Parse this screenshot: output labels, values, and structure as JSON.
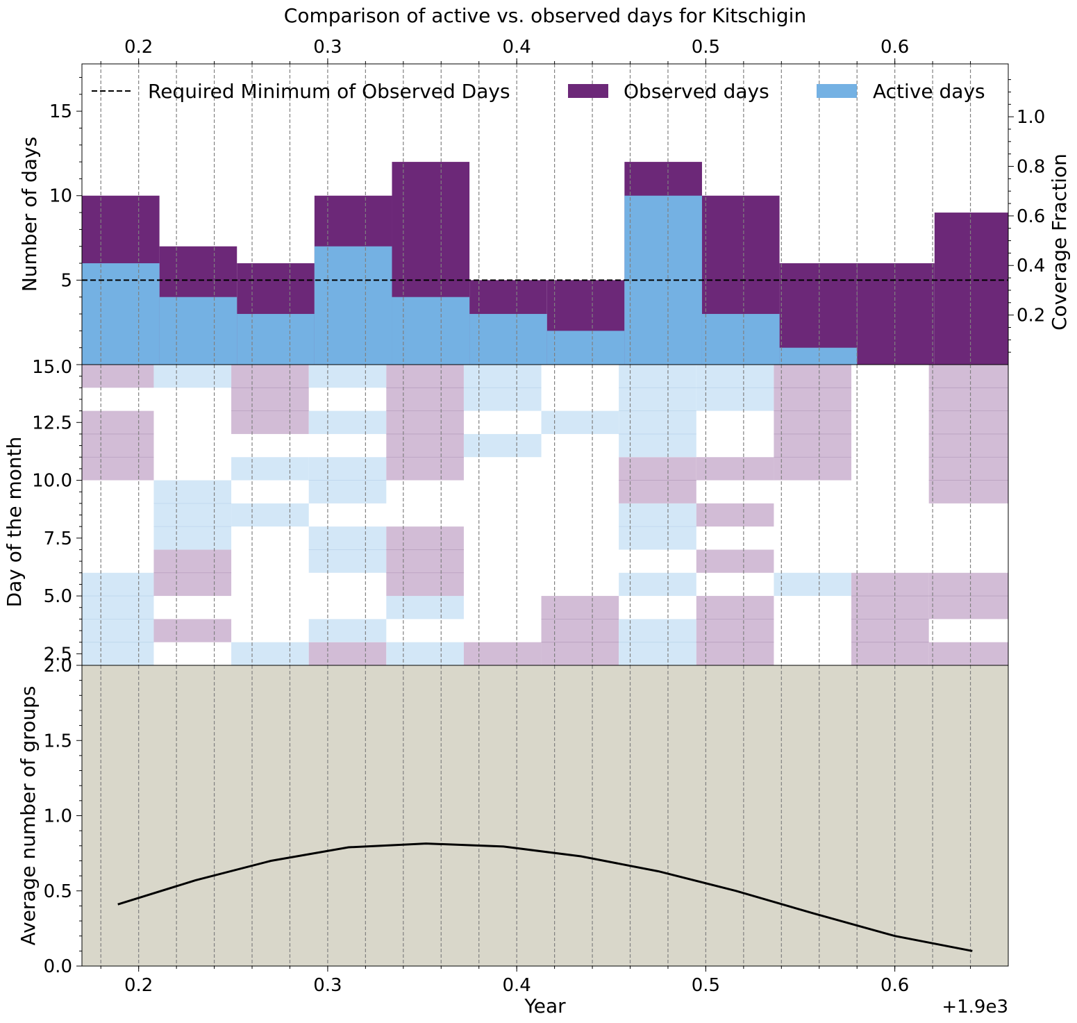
{
  "title": "Comparison of active vs. observed days for Kitschigin",
  "x_offset_label": "+1.9e3",
  "colors": {
    "observed": "#6c2878",
    "active": "#74b1e3",
    "observed_light": "#d2bcd6",
    "active_light": "#d3e7f7",
    "bottom_bg": "#d9d7ca",
    "min_line": "#000000",
    "vline": "#808080"
  },
  "chart_data": [
    {
      "type": "area",
      "panel": "top",
      "ylabel": "Number of days",
      "ylabel_right": "Coverage Fraction",
      "xlim": [
        1900.17,
        1900.66
      ],
      "ylim": [
        0,
        17.8
      ],
      "yticks": [
        5,
        10,
        15
      ],
      "ytick_labels": [
        "5",
        "10",
        "15"
      ],
      "y2lim": [
        0,
        1.2133
      ],
      "y2ticks": [
        0.2,
        0.4,
        0.6,
        0.8,
        1.0
      ],
      "y2tick_labels": [
        "0.2",
        "0.4",
        "0.6",
        "0.8",
        "1.0"
      ],
      "top_xticks": [
        1900.2,
        1900.3,
        1900.4,
        1900.5,
        1900.6
      ],
      "top_xtick_labels": [
        "0.2",
        "0.3",
        "0.4",
        "0.5",
        "0.6"
      ],
      "bin_edges": [
        1900.17,
        1900.211,
        1900.252,
        1900.293,
        1900.334,
        1900.375,
        1900.416,
        1900.457,
        1900.498,
        1900.539,
        1900.58,
        1900.621,
        1900.66
      ],
      "series": [
        {
          "name": "Observed days",
          "values": [
            10,
            7,
            6,
            10,
            12,
            5,
            5,
            12,
            10,
            6,
            6,
            9
          ]
        },
        {
          "name": "Active days",
          "values": [
            6,
            4,
            3,
            7,
            4,
            3,
            2,
            10,
            3,
            1,
            0,
            0
          ]
        }
      ],
      "min_line": {
        "name": "Required Minimum of Observed Days",
        "value": 5
      },
      "legend": {
        "placement": "top",
        "entries": [
          "Required Minimum of Observed Days",
          "Observed days",
          "Active days"
        ]
      }
    },
    {
      "type": "heatmap",
      "panel": "middle",
      "ylabel": "Day of the month",
      "ylim": [
        2.0,
        15.0
      ],
      "yticks": [
        2.0,
        2.5,
        5.0,
        7.5,
        10.0,
        12.5,
        15.0
      ],
      "ytick_labels": [
        "2.0",
        "2.5",
        "5.0",
        "7.5",
        "10.0",
        "12.5",
        "15.0"
      ],
      "columns": [
        {
          "x": [
            1900.17,
            1900.208
          ],
          "cells": [
            {
              "type": "active",
              "from": 2,
              "to": 6
            },
            {
              "type": "observed",
              "from": 10,
              "to": 13
            },
            {
              "type": "observed",
              "from": 14,
              "to": 15
            }
          ]
        },
        {
          "x": [
            1900.208,
            1900.249
          ],
          "cells": [
            {
              "type": "observed",
              "from": 3,
              "to": 4
            },
            {
              "type": "observed",
              "from": 5,
              "to": 7
            },
            {
              "type": "active",
              "from": 7,
              "to": 10
            },
            {
              "type": "active",
              "from": 14,
              "to": 15
            }
          ]
        },
        {
          "x": [
            1900.249,
            1900.29
          ],
          "cells": [
            {
              "type": "active",
              "from": 2,
              "to": 3
            },
            {
              "type": "active",
              "from": 8,
              "to": 9
            },
            {
              "type": "active",
              "from": 10,
              "to": 11
            },
            {
              "type": "observed",
              "from": 12,
              "to": 15
            }
          ]
        },
        {
          "x": [
            1900.29,
            1900.331
          ],
          "cells": [
            {
              "type": "observed",
              "from": 2,
              "to": 3
            },
            {
              "type": "active",
              "from": 3,
              "to": 4
            },
            {
              "type": "active",
              "from": 6,
              "to": 8
            },
            {
              "type": "active",
              "from": 9,
              "to": 11
            },
            {
              "type": "active",
              "from": 12,
              "to": 13
            },
            {
              "type": "active",
              "from": 14,
              "to": 15
            }
          ]
        },
        {
          "x": [
            1900.331,
            1900.372
          ],
          "cells": [
            {
              "type": "active",
              "from": 2,
              "to": 3
            },
            {
              "type": "active",
              "from": 4,
              "to": 5
            },
            {
              "type": "observed",
              "from": 5,
              "to": 8
            },
            {
              "type": "observed",
              "from": 10,
              "to": 15
            }
          ]
        },
        {
          "x": [
            1900.372,
            1900.413
          ],
          "cells": [
            {
              "type": "observed",
              "from": 2,
              "to": 3
            },
            {
              "type": "observed",
              "from": 1,
              "to": 2
            },
            {
              "type": "active",
              "from": 11,
              "to": 12
            },
            {
              "type": "active",
              "from": 13,
              "to": 15
            }
          ]
        },
        {
          "x": [
            1900.413,
            1900.454
          ],
          "cells": [
            {
              "type": "active",
              "from": 1,
              "to": 2
            },
            {
              "type": "observed",
              "from": 2,
              "to": 5
            },
            {
              "type": "active",
              "from": 12,
              "to": 13
            }
          ]
        },
        {
          "x": [
            1900.454,
            1900.495
          ],
          "cells": [
            {
              "type": "active",
              "from": 1,
              "to": 4
            },
            {
              "type": "active",
              "from": 5,
              "to": 6
            },
            {
              "type": "active",
              "from": 7,
              "to": 9
            },
            {
              "type": "observed",
              "from": 9,
              "to": 11
            },
            {
              "type": "active",
              "from": 11,
              "to": 15
            }
          ]
        },
        {
          "x": [
            1900.495,
            1900.536
          ],
          "cells": [
            {
              "type": "observed",
              "from": 0,
              "to": 1
            },
            {
              "type": "active",
              "from": 1,
              "to": 2
            },
            {
              "type": "observed",
              "from": 2,
              "to": 5
            },
            {
              "type": "observed",
              "from": 6,
              "to": 7
            },
            {
              "type": "observed",
              "from": 8,
              "to": 9
            },
            {
              "type": "observed",
              "from": 10,
              "to": 11
            },
            {
              "type": "active",
              "from": 13,
              "to": 15
            }
          ]
        },
        {
          "x": [
            1900.536,
            1900.577
          ],
          "cells": [
            {
              "type": "active",
              "from": 5,
              "to": 6
            },
            {
              "type": "observed",
              "from": 10,
              "to": 15
            }
          ]
        },
        {
          "x": [
            1900.577,
            1900.618
          ],
          "cells": [
            {
              "type": "observed",
              "from": 0,
              "to": 6
            }
          ]
        },
        {
          "x": [
            1900.618,
            1900.66
          ],
          "cells": [
            {
              "type": "observed",
              "from": 2,
              "to": 3
            },
            {
              "type": "observed",
              "from": 4,
              "to": 6
            },
            {
              "type": "observed",
              "from": 9,
              "to": 15
            }
          ]
        }
      ]
    },
    {
      "type": "line",
      "panel": "bottom",
      "xlabel": "Year",
      "ylabel": "Average number of groups",
      "xlim": [
        1900.17,
        1900.66
      ],
      "ylim": [
        0.0,
        2.0
      ],
      "xticks": [
        1900.2,
        1900.3,
        1900.4,
        1900.5,
        1900.6
      ],
      "xtick_labels": [
        "0.2",
        "0.3",
        "0.4",
        "0.5",
        "0.6"
      ],
      "yticks": [
        0.0,
        0.5,
        1.0,
        1.5
      ],
      "ytick_labels": [
        "0.0",
        "0.5",
        "1.0",
        "1.5"
      ],
      "x": [
        1900.189,
        1900.23,
        1900.27,
        1900.311,
        1900.352,
        1900.393,
        1900.434,
        1900.475,
        1900.516,
        1900.557,
        1900.6,
        1900.641
      ],
      "values": [
        0.41,
        0.57,
        0.7,
        0.79,
        0.815,
        0.795,
        0.73,
        0.63,
        0.5,
        0.35,
        0.2,
        0.1
      ]
    }
  ],
  "vertical_lines": [
    1900.18,
    1900.2,
    1900.22,
    1900.24,
    1900.26,
    1900.28,
    1900.3,
    1900.32,
    1900.34,
    1900.36,
    1900.38,
    1900.4,
    1900.42,
    1900.44,
    1900.46,
    1900.48,
    1900.5,
    1900.52,
    1900.54,
    1900.56,
    1900.58,
    1900.6,
    1900.62,
    1900.64
  ]
}
